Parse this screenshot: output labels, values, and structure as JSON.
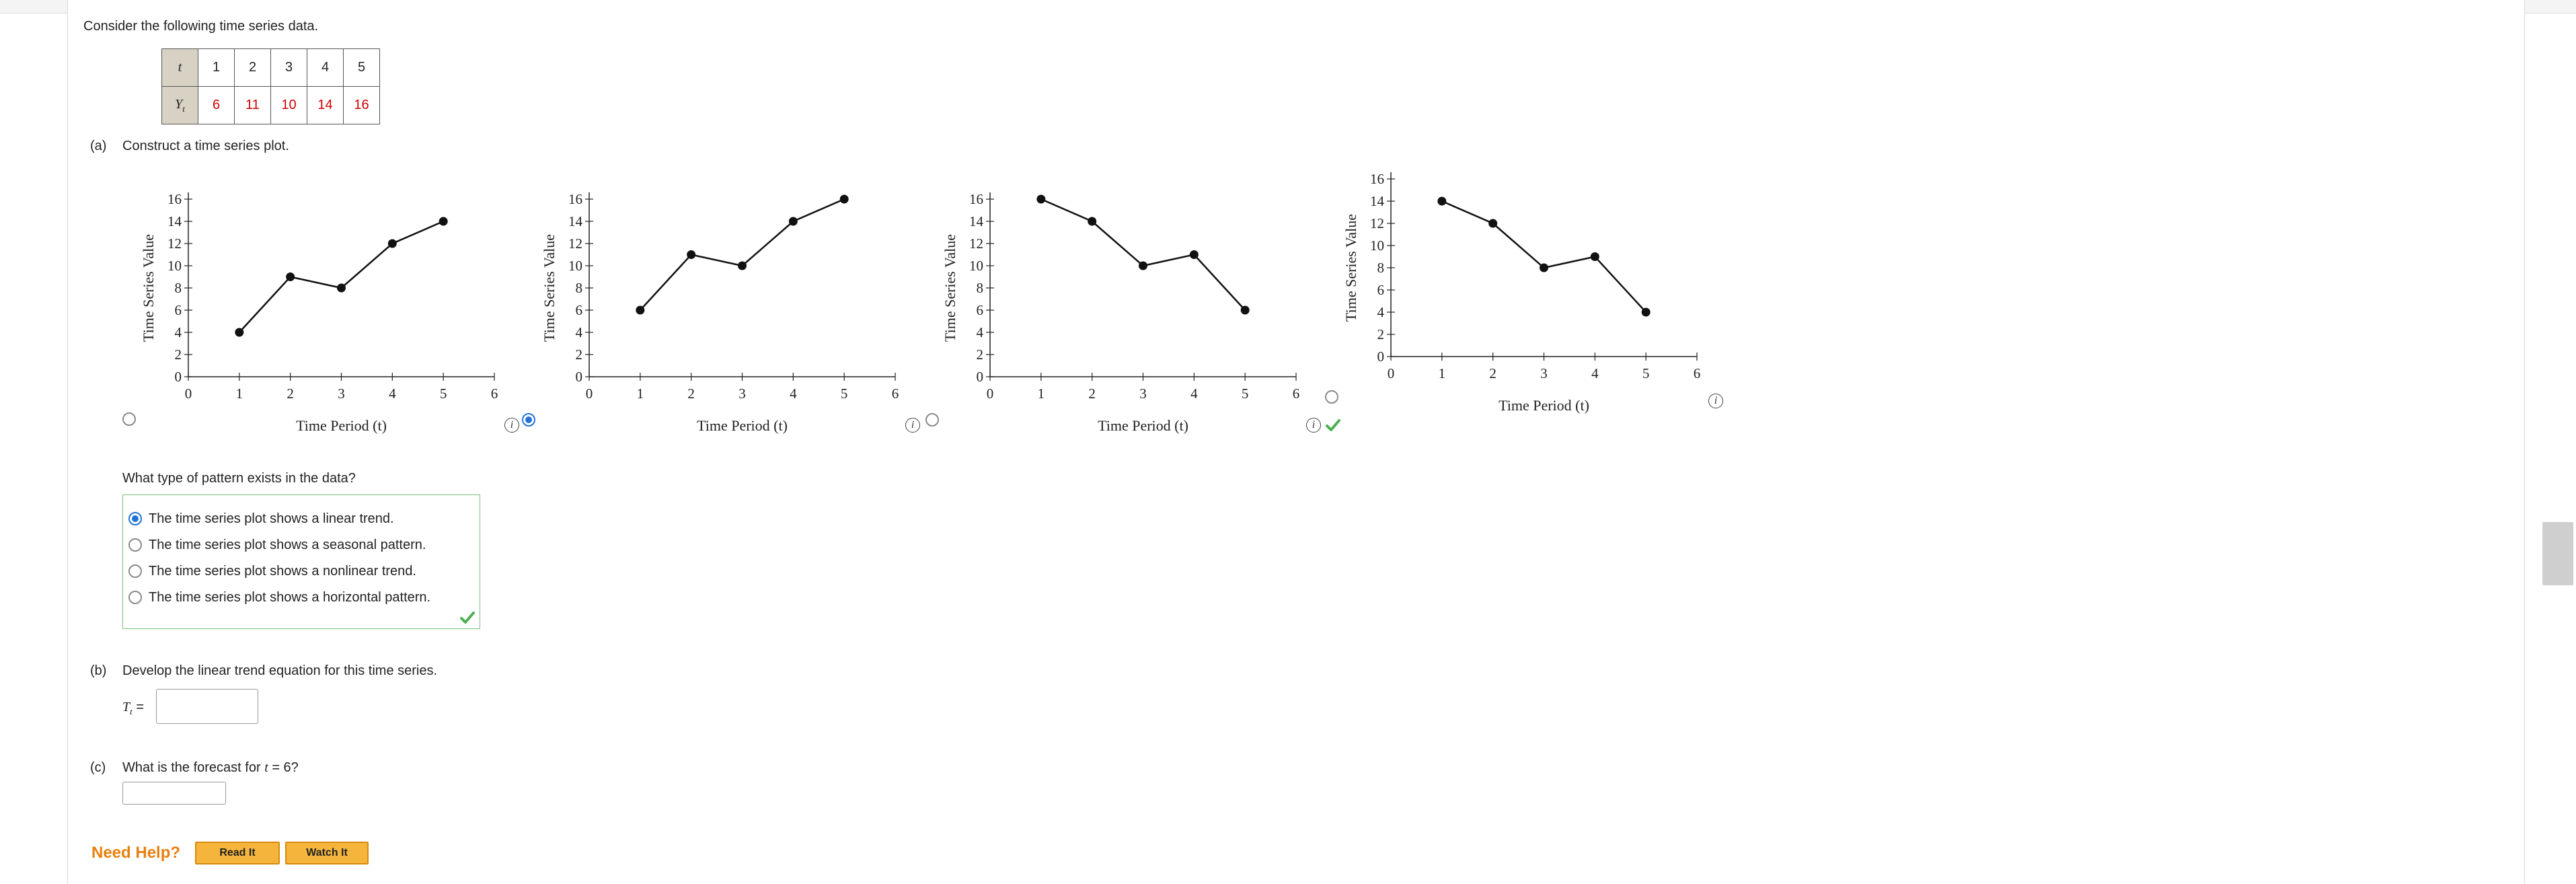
{
  "intro": "Consider the following time series data.",
  "table": {
    "t_label": "t",
    "y_label": "Y",
    "y_sub": "t",
    "t_values": [
      "1",
      "2",
      "3",
      "4",
      "5"
    ],
    "y_values": [
      "6",
      "11",
      "10",
      "14",
      "16"
    ],
    "value_color": "#d10000"
  },
  "part_a": {
    "label": "(a)",
    "prompt": "Construct a time series plot.",
    "selected_option": 2,
    "correct_option": 2
  },
  "chart_data": [
    {
      "type": "line",
      "x": [
        1,
        2,
        3,
        4,
        5
      ],
      "y": [
        4,
        9,
        8,
        12,
        14
      ],
      "xlabel": "Time Period (t)",
      "ylabel": "Time Series Value",
      "xlim": [
        0,
        6
      ],
      "ylim": [
        0,
        16
      ],
      "xticks": [
        "0",
        "1",
        "2",
        "3",
        "4",
        "5",
        "6"
      ],
      "yticks": [
        "0",
        "2",
        "4",
        "6",
        "8",
        "10",
        "12",
        "14",
        "16"
      ]
    },
    {
      "type": "line",
      "x": [
        1,
        2,
        3,
        4,
        5
      ],
      "y": [
        6,
        11,
        10,
        14,
        16
      ],
      "xlabel": "Time Period (t)",
      "ylabel": "Time Series Value",
      "xlim": [
        0,
        6
      ],
      "ylim": [
        0,
        16
      ],
      "xticks": [
        "0",
        "1",
        "2",
        "3",
        "4",
        "5",
        "6"
      ],
      "yticks": [
        "0",
        "2",
        "4",
        "6",
        "8",
        "10",
        "12",
        "14",
        "16"
      ]
    },
    {
      "type": "line",
      "x": [
        1,
        2,
        3,
        4,
        5
      ],
      "y": [
        16,
        14,
        10,
        11,
        6
      ],
      "xlabel": "Time Period (t)",
      "ylabel": "Time Series Value",
      "xlim": [
        0,
        6
      ],
      "ylim": [
        0,
        16
      ],
      "xticks": [
        "0",
        "1",
        "2",
        "3",
        "4",
        "5",
        "6"
      ],
      "yticks": [
        "0",
        "2",
        "4",
        "6",
        "8",
        "10",
        "12",
        "14",
        "16"
      ]
    },
    {
      "type": "line",
      "x": [
        1,
        2,
        3,
        4,
        5
      ],
      "y": [
        14,
        12,
        8,
        9,
        4
      ],
      "xlabel": "Time Period (t)",
      "ylabel": "Time Series Value",
      "xlim": [
        0,
        6
      ],
      "ylim": [
        0,
        16
      ],
      "xticks": [
        "0",
        "1",
        "2",
        "3",
        "4",
        "5",
        "6"
      ],
      "yticks": [
        "0",
        "2",
        "4",
        "6",
        "8",
        "10",
        "12",
        "14",
        "16"
      ]
    }
  ],
  "pattern": {
    "question": "What type of pattern exists in the data?",
    "options": [
      "The time series plot shows a linear trend.",
      "The time series plot shows a seasonal pattern.",
      "The time series plot shows a nonlinear trend.",
      "The time series plot shows a horizontal pattern."
    ],
    "selected_index": 0,
    "status": "correct"
  },
  "part_b": {
    "label": "(b)",
    "prompt": "Develop the linear trend equation for this time series.",
    "lhs_var": "T",
    "lhs_sub": "t",
    "lhs_eq": "=",
    "value": ""
  },
  "part_c": {
    "label": "(c)",
    "prompt_before": "What is the forecast for ",
    "prompt_var": "t",
    "prompt_after": " = 6?",
    "value": ""
  },
  "help": {
    "label": "Need Help?",
    "read_it": "Read It",
    "watch_it": "Watch It"
  },
  "colors": {
    "accent": "#2173d6",
    "correct": "#4caf50",
    "help_orange": "#e8800d",
    "button_fill": "#f5b53c"
  }
}
